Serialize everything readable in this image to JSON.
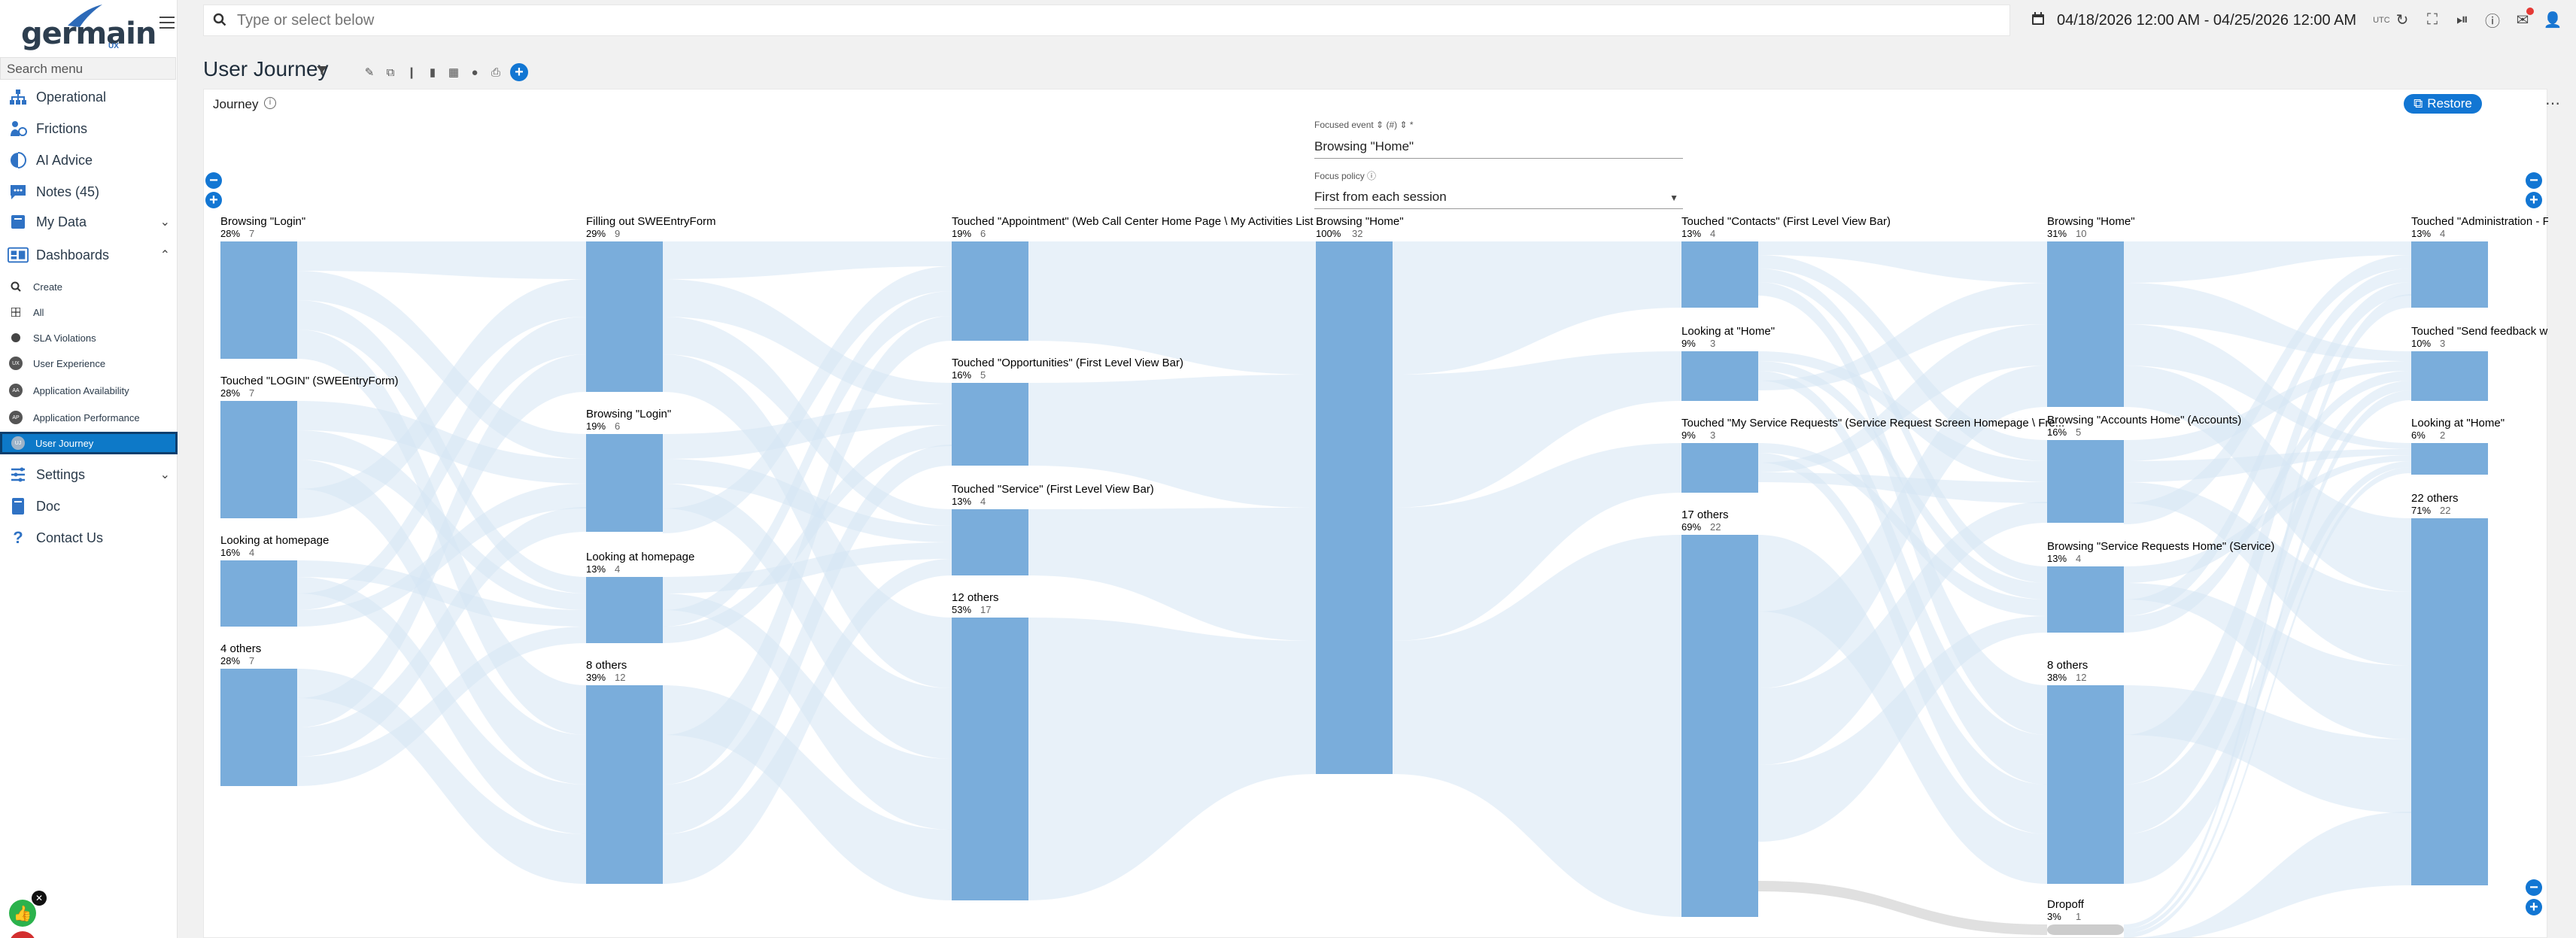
{
  "brand": {
    "name": "germain",
    "sub": "UX"
  },
  "sidebar": {
    "search_placeholder": "Search menu",
    "items": [
      {
        "label": "Operational",
        "icon": "org-chart-icon"
      },
      {
        "label": "Frictions",
        "icon": "frictions-icon"
      },
      {
        "label": "AI Advice",
        "icon": "ai-icon"
      },
      {
        "label": "Notes (45)",
        "icon": "notes-icon"
      },
      {
        "label": "My Data",
        "icon": "folder-icon"
      },
      {
        "label": "Dashboards",
        "icon": "dashboard-icon"
      }
    ],
    "dashboard_sub": [
      {
        "label": "Create"
      },
      {
        "label": "All"
      },
      {
        "label": "SLA Violations"
      },
      {
        "label": "User Experience"
      },
      {
        "label": "Application Availability"
      },
      {
        "label": "Application Performance"
      },
      {
        "label": "User Journey"
      }
    ],
    "bottom_items": [
      {
        "label": "Settings"
      },
      {
        "label": "Doc"
      },
      {
        "label": "Contact Us"
      }
    ]
  },
  "topbar": {
    "search_placeholder": "Type or select below",
    "date_range": "04/18/2026 12:00 AM - 04/25/2026 12:00 AM",
    "timezone": "UTC"
  },
  "page": {
    "title": "User Journey"
  },
  "panel": {
    "title": "Journey",
    "restore_label": "Restore",
    "focused_event_label": "Focused event",
    "focused_event_value": "Browsing \"Home\"",
    "focus_policy_label": "Focus policy",
    "focus_policy_value": "First from each session"
  },
  "colors": {
    "accent": "#1276d3",
    "node": "#7aaddb",
    "link": "#d6e6f4",
    "dropoff": "#cccccc"
  },
  "journey": {
    "columns": [
      {
        "nodes": [
          {
            "label": "Browsing \"Login\"",
            "pct": "28%",
            "count": "7"
          },
          {
            "label": "Touched \"LOGIN\" (SWEEntryForm)",
            "pct": "28%",
            "count": "7"
          },
          {
            "label": "Looking at homepage",
            "pct": "16%",
            "count": "4"
          },
          {
            "label": "4 others",
            "pct": "28%",
            "count": "7"
          }
        ]
      },
      {
        "nodes": [
          {
            "label": "Filling out SWEEntryForm",
            "pct": "29%",
            "count": "9"
          },
          {
            "label": "Browsing \"Login\"",
            "pct": "19%",
            "count": "6"
          },
          {
            "label": "Looking at homepage",
            "pct": "13%",
            "count": "4"
          },
          {
            "label": "8 others",
            "pct": "39%",
            "count": "12"
          }
        ]
      },
      {
        "nodes": [
          {
            "label": "Touched \"Appointment\" (Web Call Center Home Page \\ My Activities List ...",
            "pct": "19%",
            "count": "6"
          },
          {
            "label": "Touched \"Opportunities\" (First Level View Bar)",
            "pct": "16%",
            "count": "5"
          },
          {
            "label": "Touched \"Service\" (First Level View Bar)",
            "pct": "13%",
            "count": "4"
          },
          {
            "label": "12 others",
            "pct": "53%",
            "count": "17"
          }
        ]
      },
      {
        "nodes": [
          {
            "label": "Browsing \"Home\"",
            "pct": "100%",
            "count": "32"
          }
        ]
      },
      {
        "nodes": [
          {
            "label": "Touched \"Contacts\" (First Level View Bar)",
            "pct": "13%",
            "count": "4"
          },
          {
            "label": "Looking at \"Home\"",
            "pct": "9%",
            "count": "3"
          },
          {
            "label": "Touched \"My Service Requests\" (Service Request Screen Homepage \\ Fre...",
            "pct": "9%",
            "count": "3"
          },
          {
            "label": "17 others",
            "pct": "69%",
            "count": "22"
          }
        ]
      },
      {
        "nodes": [
          {
            "label": "Browsing \"Home\"",
            "pct": "31%",
            "count": "10"
          },
          {
            "label": "Browsing \"Accounts Home\" (Accounts)",
            "pct": "16%",
            "count": "5"
          },
          {
            "label": "Browsing \"Service Requests Home\" (Service)",
            "pct": "13%",
            "count": "4"
          },
          {
            "label": "8 others",
            "pct": "38%",
            "count": "12"
          },
          {
            "label": "Dropoff",
            "pct": "3%",
            "count": "1"
          }
        ]
      },
      {
        "nodes": [
          {
            "label": "Touched \"Administration - F",
            "pct": "13%",
            "count": "4"
          },
          {
            "label": "Touched \"Send feedback wi",
            "pct": "10%",
            "count": "3"
          },
          {
            "label": "Looking at \"Home\"",
            "pct": "6%",
            "count": "2"
          },
          {
            "label": "22 others",
            "pct": "71%",
            "count": "22"
          }
        ]
      }
    ]
  }
}
